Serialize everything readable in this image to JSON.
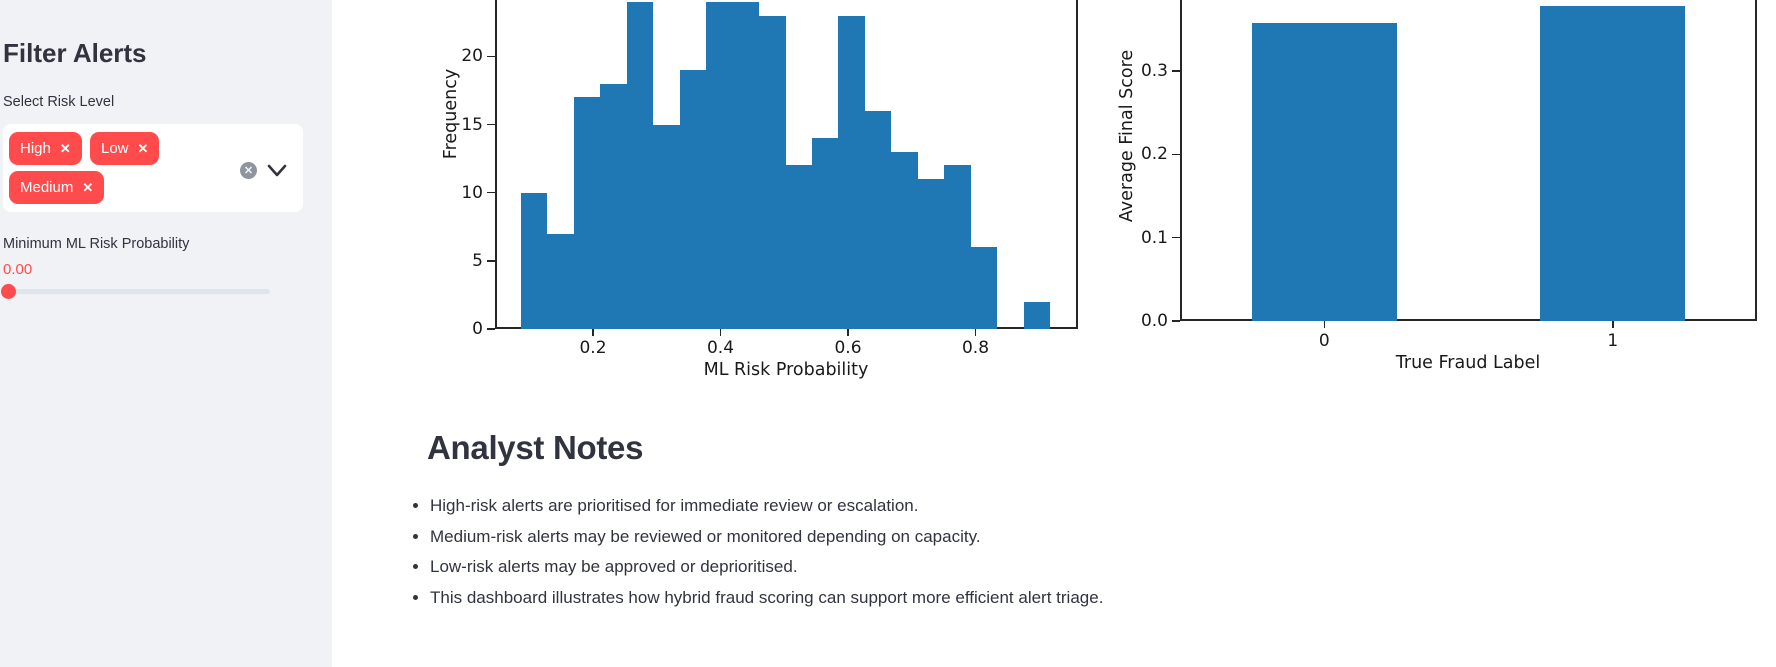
{
  "sidebar": {
    "title": "Filter Alerts",
    "multiselect": {
      "label": "Select Risk Level",
      "selected": [
        "High",
        "Low",
        "Medium"
      ],
      "remove_glyph": "✕",
      "clear_glyph": "✕"
    },
    "slider": {
      "label": "Minimum ML Risk Probability",
      "value": "0.00"
    }
  },
  "notes": {
    "title": "Analyst Notes",
    "bullets": [
      "High-risk alerts are prioritised for immediate review or escalation.",
      "Medium-risk alerts may be reviewed or monitored depending on capacity.",
      "Low-risk alerts may be approved or deprioritised.",
      "This dashboard illustrates how hybrid fraud scoring can support more efficient alert triage."
    ]
  },
  "chart_data": [
    {
      "type": "bar",
      "subtype": "histogram",
      "xlabel": "ML Risk Probability",
      "ylabel": "Frequency",
      "bin_start": 0.087,
      "bin_width": 0.0415,
      "frequencies": [
        10,
        7,
        17,
        18,
        24,
        15,
        19,
        24,
        24,
        23,
        12,
        14,
        23,
        16,
        13,
        11,
        12,
        6,
        0,
        2
      ],
      "x_ticks": [
        0.2,
        0.4,
        0.6,
        0.8
      ],
      "y_ticks": [
        0,
        5,
        10,
        15,
        20
      ],
      "ylim_visible": [
        0,
        24.1
      ],
      "xlim": [
        0.035,
        0.95
      ],
      "grid": false,
      "bar_color": "#1f77b4",
      "note": "top of plot cropped by viewport scroll"
    },
    {
      "type": "bar",
      "xlabel": "True Fraud Label",
      "ylabel": "Average Final Score",
      "categories": [
        "0",
        "1"
      ],
      "values": [
        0.358,
        0.378
      ],
      "y_ticks": [
        0.0,
        0.1,
        0.2,
        0.3
      ],
      "ylim_visible": [
        0,
        0.385
      ],
      "grid": false,
      "bar_color": "#1f77b4",
      "note": "top of plot cropped by viewport scroll"
    }
  ],
  "colors": {
    "accent_red": "#ff4b4b",
    "sidebar_bg": "#f0f2f6",
    "text": "#31333f",
    "bar_blue": "#1f77b4"
  }
}
